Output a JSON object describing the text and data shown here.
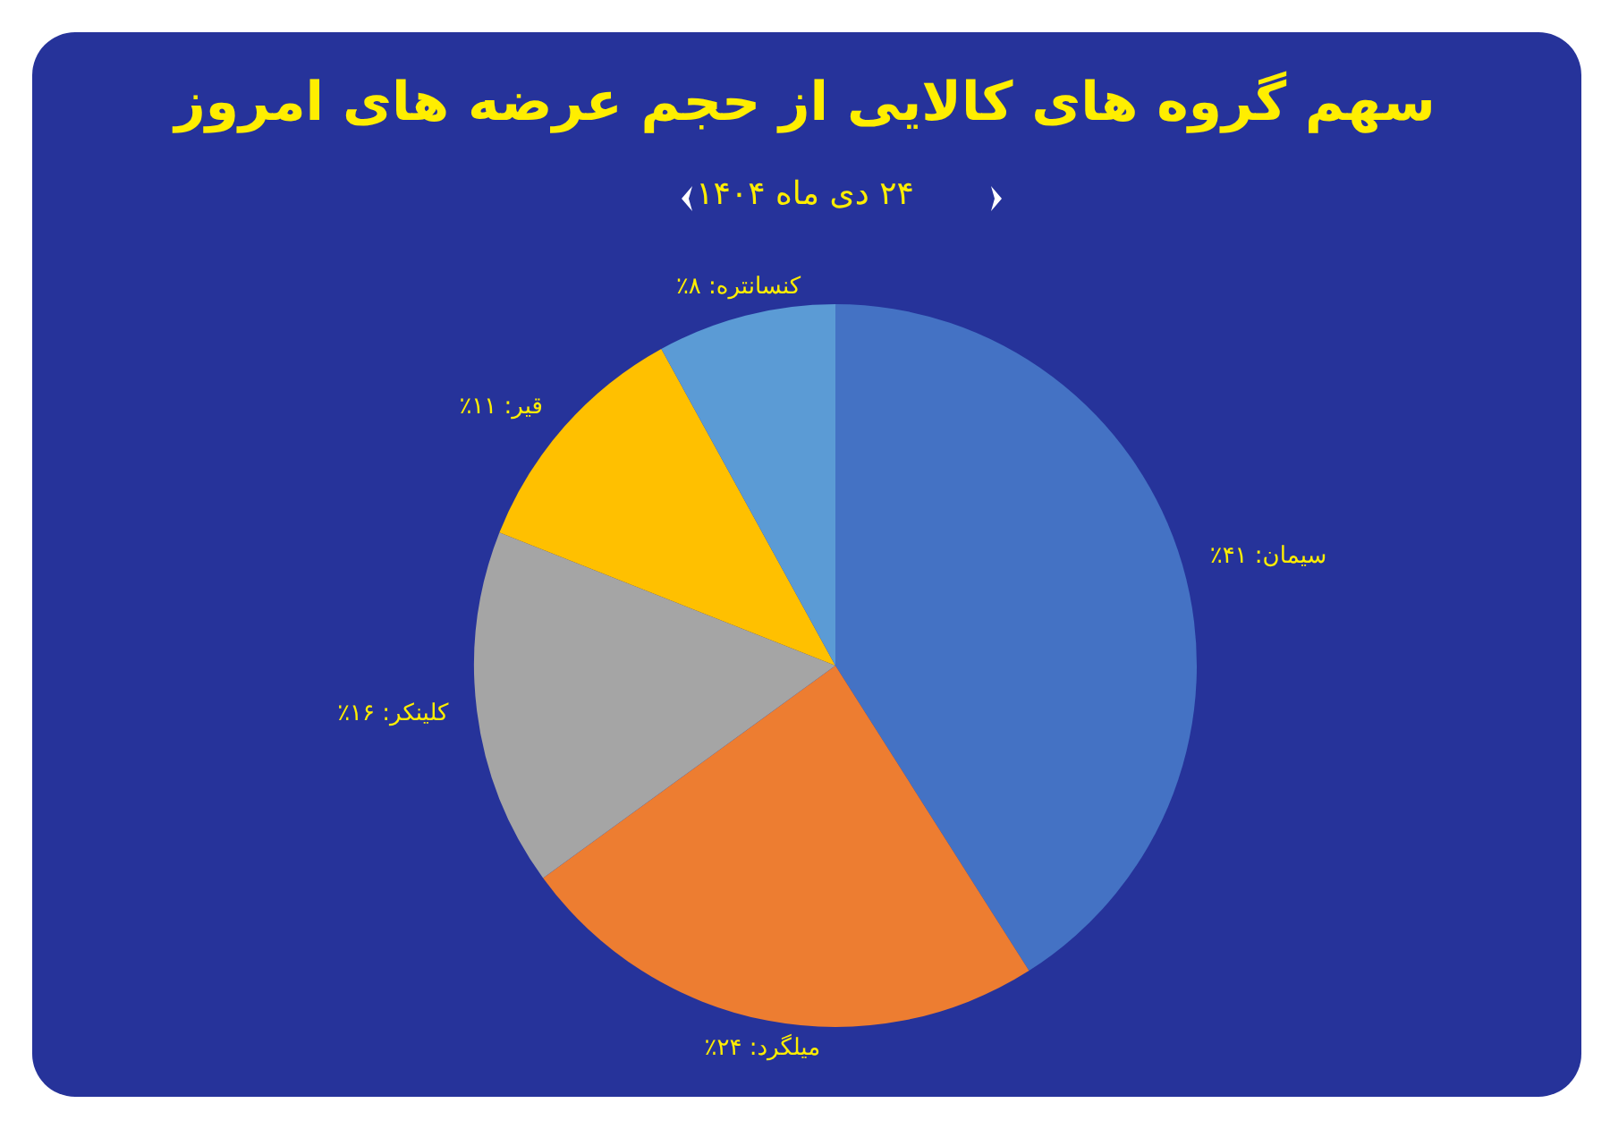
{
  "chart_data": {
    "type": "pie",
    "title": "سهم گروه های کالایی از حجم عرضه های امروز",
    "subtitle": "۲۴ دی ماه ۱۴۰۴",
    "categories": [
      "سیمان",
      "میلگرد",
      "کلینکر",
      "قیر",
      "کنسانتره"
    ],
    "values": [
      41,
      24,
      16,
      11,
      8
    ],
    "colors": [
      "#4472c4",
      "#ed7d31",
      "#a5a5a5",
      "#ffc000",
      "#5b9bd5"
    ],
    "value_labels": [
      "۴۱٪",
      "۲۴٪",
      "۱۶٪",
      "۱۱٪",
      "۸٪"
    ],
    "legend": false
  }
}
